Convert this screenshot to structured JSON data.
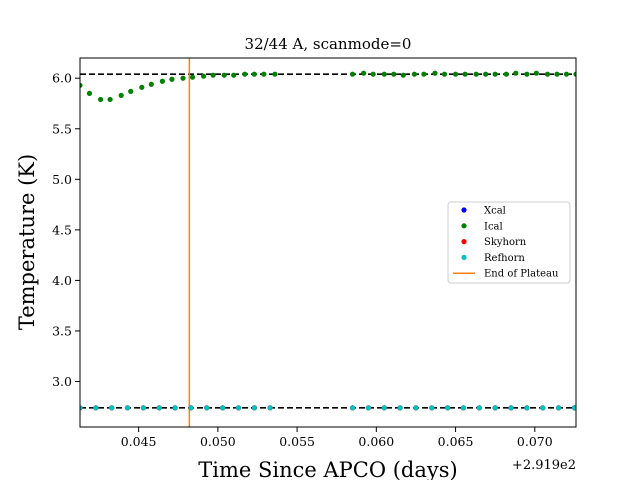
{
  "chart_data": {
    "type": "scatter",
    "title": "32/44 A, scanmode=0",
    "xlabel": "Time Since APCO (days)",
    "ylabel": "Temperature (K)",
    "x_offset_label": "+2.919e2",
    "xlim": [
      0.0413,
      0.0726
    ],
    "ylim": [
      2.55,
      6.2
    ],
    "xticks": [
      0.045,
      0.05,
      0.055,
      0.06,
      0.065,
      0.07
    ],
    "xtick_labels": [
      "0.045",
      "0.050",
      "0.055",
      "0.060",
      "0.065",
      "0.070"
    ],
    "yticks": [
      3.0,
      3.5,
      4.0,
      4.5,
      5.0,
      5.5,
      6.0
    ],
    "ytick_labels": [
      "3.0",
      "3.5",
      "4.0",
      "4.5",
      "5.0",
      "5.5",
      "6.0"
    ],
    "reference_lines": [
      6.04,
      2.74
    ],
    "vertical_line": {
      "x": 0.0482,
      "name": "End of Plateau",
      "color": "#ff7f0e"
    },
    "legend_position": "center-right",
    "series": [
      {
        "name": "Xcal",
        "color": "#0000ff",
        "x": [
          0.0413,
          0.0423,
          0.0433,
          0.0443,
          0.0453,
          0.0463,
          0.0473,
          0.0483,
          0.0493,
          0.0503,
          0.0513,
          0.0523,
          0.0533,
          0.0585,
          0.0595,
          0.0605,
          0.0615,
          0.0625,
          0.0635,
          0.0645,
          0.0655,
          0.0665,
          0.0675,
          0.0685,
          0.0695,
          0.0705,
          0.0715,
          0.0725
        ],
        "y": [
          2.74,
          2.74,
          2.74,
          2.74,
          2.74,
          2.74,
          2.74,
          2.74,
          2.74,
          2.74,
          2.74,
          2.74,
          2.74,
          2.74,
          2.74,
          2.74,
          2.74,
          2.74,
          2.74,
          2.74,
          2.74,
          2.74,
          2.74,
          2.74,
          2.74,
          2.74,
          2.74,
          2.74
        ]
      },
      {
        "name": "Ical",
        "color": "#008000",
        "x": [
          0.0413,
          0.0419,
          0.0426,
          0.0432,
          0.0439,
          0.0445,
          0.0452,
          0.0458,
          0.0465,
          0.0471,
          0.0478,
          0.0484,
          0.0491,
          0.0497,
          0.0504,
          0.051,
          0.0517,
          0.0523,
          0.0529,
          0.0536,
          0.0585,
          0.0592,
          0.0598,
          0.0605,
          0.0611,
          0.0617,
          0.0624,
          0.063,
          0.0637,
          0.0643,
          0.065,
          0.0656,
          0.0663,
          0.0669,
          0.0675,
          0.0682,
          0.0688,
          0.0695,
          0.0701,
          0.0708,
          0.0714,
          0.072,
          0.0726
        ],
        "y": [
          5.93,
          5.85,
          5.79,
          5.79,
          5.83,
          5.87,
          5.91,
          5.94,
          5.97,
          5.99,
          6.0,
          6.01,
          6.02,
          6.03,
          6.03,
          6.03,
          6.04,
          6.04,
          6.04,
          6.04,
          6.04,
          6.05,
          6.04,
          6.04,
          6.04,
          6.03,
          6.04,
          6.04,
          6.05,
          6.04,
          6.04,
          6.04,
          6.04,
          6.04,
          6.04,
          6.04,
          6.05,
          6.04,
          6.05,
          6.04,
          6.04,
          6.04,
          6.04
        ]
      },
      {
        "name": "Skyhorn",
        "color": "#ff0000",
        "x": [
          0.0413,
          0.0423,
          0.0433,
          0.0443,
          0.0453,
          0.0463,
          0.0473,
          0.0483,
          0.0493,
          0.0503,
          0.0513,
          0.0523,
          0.0533,
          0.0585,
          0.0595,
          0.0605,
          0.0615,
          0.0625,
          0.0635,
          0.0645,
          0.0655,
          0.0665,
          0.0675,
          0.0685,
          0.0695,
          0.0705,
          0.0715,
          0.0725
        ],
        "y": [
          2.74,
          2.74,
          2.74,
          2.74,
          2.74,
          2.74,
          2.74,
          2.74,
          2.74,
          2.74,
          2.74,
          2.74,
          2.74,
          2.74,
          2.74,
          2.74,
          2.74,
          2.74,
          2.74,
          2.74,
          2.74,
          2.74,
          2.74,
          2.74,
          2.74,
          2.74,
          2.74,
          2.74
        ]
      },
      {
        "name": "Refhorn",
        "color": "#00bfbf",
        "x": [
          0.0413,
          0.0423,
          0.0433,
          0.0443,
          0.0453,
          0.0463,
          0.0473,
          0.0483,
          0.0493,
          0.0503,
          0.0513,
          0.0523,
          0.0533,
          0.0585,
          0.0595,
          0.0605,
          0.0615,
          0.0625,
          0.0635,
          0.0645,
          0.0655,
          0.0665,
          0.0675,
          0.0685,
          0.0695,
          0.0705,
          0.0715,
          0.0725
        ],
        "y": [
          2.74,
          2.74,
          2.74,
          2.74,
          2.74,
          2.74,
          2.74,
          2.74,
          2.74,
          2.74,
          2.74,
          2.74,
          2.74,
          2.74,
          2.74,
          2.74,
          2.74,
          2.74,
          2.74,
          2.74,
          2.74,
          2.74,
          2.74,
          2.74,
          2.74,
          2.74,
          2.74,
          2.74
        ]
      }
    ]
  }
}
